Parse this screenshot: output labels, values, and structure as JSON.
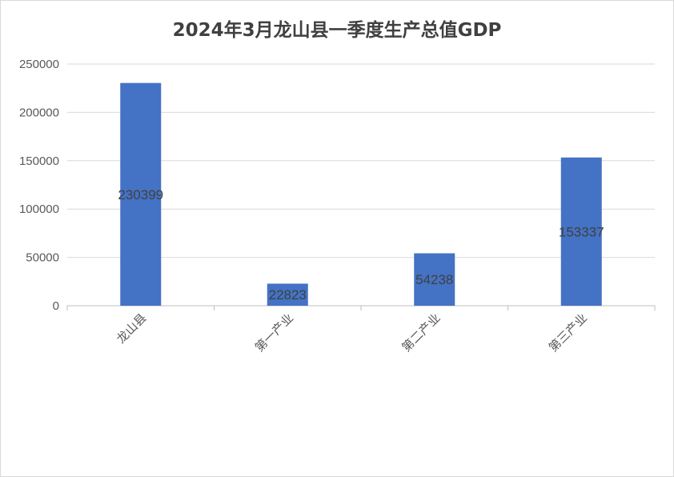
{
  "chart_data": {
    "type": "bar",
    "title": "2024年3月龙山县一季度生产总值GDP",
    "categories": [
      "龙山县",
      "第一产业",
      "第二产业",
      "第三产业"
    ],
    "values": [
      230399,
      22823,
      54238,
      153337
    ],
    "data_labels": [
      "230399",
      "22823",
      "54238",
      "153337"
    ],
    "ylim": [
      0,
      250000
    ],
    "yticks": [
      0,
      50000,
      100000,
      150000,
      200000,
      250000
    ],
    "grid": true,
    "legend": "none",
    "bar_color": "#4472C4"
  }
}
